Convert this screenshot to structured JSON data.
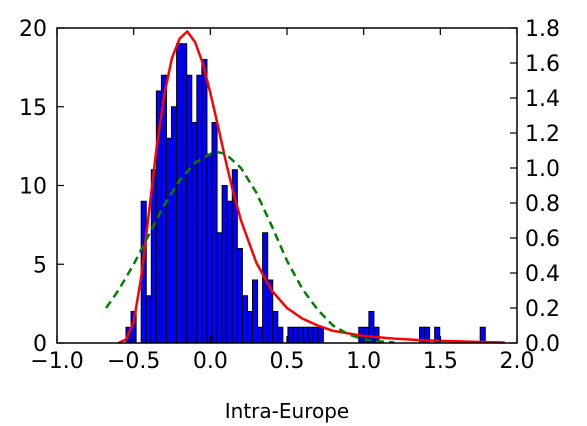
{
  "chart_data": {
    "type": "bar",
    "title": "",
    "xlabel": "Intra-Europe",
    "ylabel": "",
    "xlim": [
      -1.0,
      2.0
    ],
    "ylim_left": [
      0,
      20
    ],
    "ylim_right": [
      0,
      1.8
    ],
    "x_ticks": [
      "−1.0",
      "−0.5",
      "0.0",
      "0.5",
      "1.0",
      "1.5",
      "2.0"
    ],
    "x_tick_values": [
      -1.0,
      -0.5,
      0.0,
      0.5,
      1.0,
      1.5,
      2.0
    ],
    "y_left_ticks": [
      "0",
      "5",
      "10",
      "15",
      "20"
    ],
    "y_left_tick_values": [
      0,
      5,
      10,
      15,
      20
    ],
    "y_right_ticks": [
      "0.0",
      "0.2",
      "0.4",
      "0.6",
      "0.8",
      "1.0",
      "1.2",
      "1.4",
      "1.6",
      "1.8"
    ],
    "y_right_tick_values": [
      0.0,
      0.2,
      0.4,
      0.6,
      0.8,
      1.0,
      1.2,
      1.4,
      1.6,
      1.8
    ],
    "grid": false,
    "colors": {
      "bars": "#0000ff",
      "bar_edge": "#000000",
      "solid_curve": "#ff0000",
      "dashed_curve": "#008000"
    },
    "histogram": {
      "bin_width": 0.033,
      "bin_starts": [
        -0.55,
        -0.517,
        -0.484,
        -0.451,
        -0.418,
        -0.385,
        -0.352,
        -0.319,
        -0.286,
        -0.253,
        -0.22,
        -0.187,
        -0.154,
        -0.121,
        -0.088,
        -0.055,
        -0.022,
        0.011,
        0.044,
        0.077,
        0.11,
        0.143,
        0.176,
        0.209,
        0.242,
        0.275,
        0.308,
        0.341,
        0.374,
        0.407,
        0.44,
        0.473,
        0.506,
        0.539,
        0.572,
        0.605,
        0.638,
        0.671,
        0.704,
        0.737,
        0.968,
        1.001,
        1.034,
        1.067,
        1.364,
        1.397,
        1.463,
        1.76
      ],
      "counts": [
        1,
        2,
        0,
        9,
        3,
        11,
        16,
        17,
        13,
        15,
        19,
        19,
        17,
        14,
        17,
        18,
        12,
        14,
        7,
        10,
        9,
        11,
        6,
        3,
        2,
        4,
        1,
        7,
        4,
        2,
        1,
        0,
        1,
        1,
        1,
        1,
        1,
        1,
        1,
        0,
        1,
        1,
        2,
        1,
        1,
        1,
        1,
        1
      ]
    },
    "series": [
      {
        "style": "solid",
        "axis": "right",
        "x": [
          -0.6,
          -0.55,
          -0.5,
          -0.45,
          -0.4,
          -0.35,
          -0.3,
          -0.25,
          -0.2,
          -0.15,
          -0.1,
          -0.05,
          0.0,
          0.05,
          0.1,
          0.15,
          0.2,
          0.3,
          0.4,
          0.5,
          0.6,
          0.7,
          0.8,
          1.0,
          1.2,
          1.4,
          1.6,
          1.8,
          1.92
        ],
        "y": [
          0.0,
          0.02,
          0.12,
          0.38,
          0.75,
          1.12,
          1.42,
          1.63,
          1.74,
          1.78,
          1.72,
          1.6,
          1.43,
          1.24,
          1.04,
          0.86,
          0.7,
          0.46,
          0.3,
          0.2,
          0.14,
          0.1,
          0.07,
          0.04,
          0.025,
          0.015,
          0.01,
          0.005,
          0.003
        ]
      },
      {
        "style": "dashed",
        "axis": "right",
        "x": [
          -0.68,
          -0.6,
          -0.5,
          -0.4,
          -0.3,
          -0.2,
          -0.1,
          0.0,
          0.05,
          0.1,
          0.2,
          0.3,
          0.4,
          0.5,
          0.6,
          0.7,
          0.8,
          0.9,
          1.0,
          1.1,
          1.2
        ],
        "y": [
          0.2,
          0.3,
          0.45,
          0.62,
          0.79,
          0.93,
          1.03,
          1.08,
          1.09,
          1.08,
          1.0,
          0.86,
          0.67,
          0.47,
          0.31,
          0.19,
          0.1,
          0.05,
          0.02,
          0.01,
          0.003
        ]
      }
    ]
  }
}
